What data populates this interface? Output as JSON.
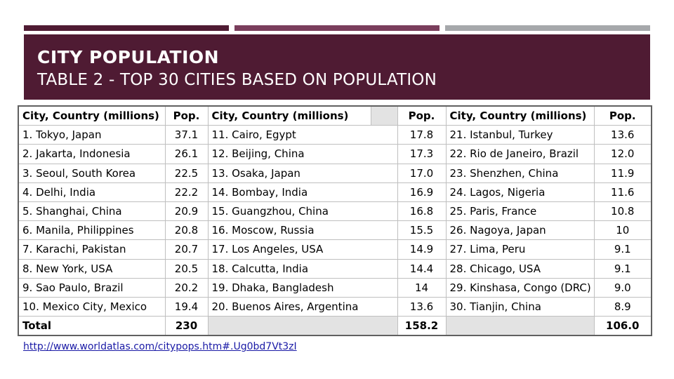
{
  "slide": {
    "title": "CITY POPULATION",
    "subtitle": "TABLE 2  - TOP 30 CITIES BASED ON POPULATION",
    "source_link": "http://www.worldatlas.com/citypops.htm#.Ug0bd7Vt3zI",
    "colors": {
      "accent_dark": "#4f1b33",
      "accent_mid": "#7a3e5c",
      "accent_gray": "#a6a8ab"
    }
  },
  "table": {
    "headers": [
      "City, Country (millions)",
      "Pop.",
      "City, Country (millions)",
      "Pop.",
      "City, Country (millions)",
      "Pop."
    ],
    "rows": [
      [
        "1. Tokyo, Japan",
        "37.1",
        "11.  Cairo, Egypt",
        "17.8",
        "21.  Istanbul, Turkey",
        "13.6"
      ],
      [
        "2. Jakarta, Indonesia",
        "26.1",
        "12.  Beijing, China",
        "17.3",
        "22.  Rio de Janeiro, Brazil",
        "12.0"
      ],
      [
        "3. Seoul, South Korea",
        "22.5",
        "13.  Osaka, Japan",
        "17.0",
        "23.  Shenzhen, China",
        "11.9"
      ],
      [
        "4. Delhi, India",
        "22.2",
        "14.  Bombay, India",
        "16.9",
        "24.  Lagos, Nigeria",
        "11.6"
      ],
      [
        "5. Shanghai, China",
        "20.9",
        "15.  Guangzhou, China",
        "16.8",
        "25.  Paris, France",
        "10.8"
      ],
      [
        "6. Manila, Philippines",
        "20.8",
        "16.  Moscow, Russia",
        "15.5",
        "26.  Nagoya, Japan",
        "10"
      ],
      [
        "7. Karachi, Pakistan",
        "20.7",
        "17.  Los Angeles, USA",
        "14.9",
        "27.  Lima, Peru",
        "9.1"
      ],
      [
        "8. New York, USA",
        "20.5",
        "18.  Calcutta, India",
        "14.4",
        "28.  Chicago, USA",
        "9.1"
      ],
      [
        "9. Sao Paulo, Brazil",
        "20.2",
        "19.  Dhaka, Bangladesh",
        "14",
        "29.  Kinshasa, Congo (DRC)",
        "9.0"
      ],
      [
        "10.  Mexico City, Mexico",
        "19.4",
        "20.  Buenos Aires, Argentina",
        "13.6",
        "30.  Tianjin, China",
        "8.9"
      ]
    ],
    "total_label": "Total",
    "totals": [
      "230",
      "158.2",
      "106.0"
    ]
  }
}
